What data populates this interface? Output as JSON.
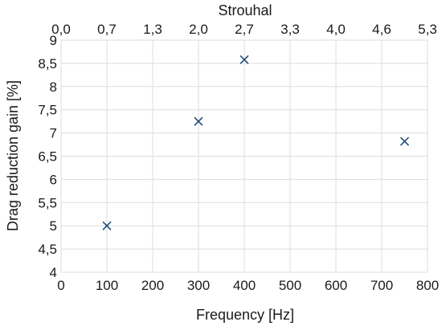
{
  "chart_data": {
    "type": "scatter",
    "title": "",
    "xlabel": "Frequency [Hz]",
    "ylabel": "Drag reduction gain [%]",
    "x2label": "Strouhal",
    "xlim": [
      0,
      800
    ],
    "ylim": [
      4,
      9
    ],
    "xticks": [
      0,
      100,
      200,
      300,
      400,
      500,
      600,
      700,
      800
    ],
    "xtick_labels": [
      "0",
      "100",
      "200",
      "300",
      "400",
      "500",
      "600",
      "700",
      "800"
    ],
    "yticks": [
      4,
      4.5,
      5,
      5.5,
      6,
      6.5,
      7,
      7.5,
      8,
      8.5,
      9
    ],
    "ytick_labels": [
      "4",
      "4,5",
      "5",
      "5,5",
      "6",
      "6,5",
      "7",
      "7,5",
      "8",
      "8,5",
      "9"
    ],
    "x2_tick_labels": [
      "0,0",
      "0,7",
      "1,3",
      "2,0",
      "2,7",
      "3,3",
      "4,0",
      "4,6",
      "5,3"
    ],
    "grid": true,
    "marker": "x",
    "marker_color": "#1f4e79",
    "series": [
      {
        "x": [
          100,
          300,
          400,
          750
        ],
        "y": [
          5.0,
          7.25,
          8.58,
          6.82
        ]
      }
    ]
  }
}
